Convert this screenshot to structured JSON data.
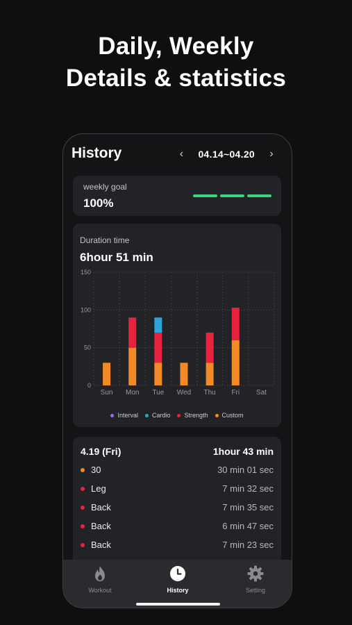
{
  "headline": {
    "line1": "Daily, Weekly",
    "line2": "Details & statistics"
  },
  "header": {
    "title": "History",
    "prev_icon": "chevron-left-icon",
    "next_icon": "chevron-right-icon",
    "prev": "‹",
    "next": "›",
    "date_range": "04.14~04.20"
  },
  "goal": {
    "label": "weekly goal",
    "value": "100%",
    "segments": 3,
    "color": "#3ed37f"
  },
  "duration": {
    "label": "Duration time",
    "value": "6hour 51 min"
  },
  "chart_data": {
    "type": "bar",
    "stacked": true,
    "categories": [
      "Sun",
      "Mon",
      "Tue",
      "Wed",
      "Thu",
      "Fri",
      "Sat"
    ],
    "yticks": [
      0,
      50,
      100,
      150
    ],
    "ylim": [
      0,
      150
    ],
    "grid": true,
    "legend_position": "bottom",
    "series": [
      {
        "name": "Interval",
        "color": "#9b6cf0",
        "values": [
          0,
          0,
          0,
          0,
          0,
          0,
          0
        ]
      },
      {
        "name": "Cardio",
        "color": "#2aa7d8",
        "values": [
          0,
          0,
          20,
          0,
          0,
          0,
          0
        ]
      },
      {
        "name": "Strength",
        "color": "#e8213f",
        "values": [
          0,
          40,
          40,
          0,
          40,
          43,
          0
        ]
      },
      {
        "name": "Custom",
        "color": "#f28b27",
        "values": [
          30,
          50,
          30,
          30,
          30,
          60,
          0
        ]
      }
    ]
  },
  "detail": {
    "date": "4.19 (Fri)",
    "total": "1hour 43 min",
    "items": [
      {
        "name": "30",
        "value": "30 min 01 sec",
        "color": "#f28b27"
      },
      {
        "name": "Leg",
        "value": "7 min 32 sec",
        "color": "#e8213f"
      },
      {
        "name": "Back",
        "value": "7 min 35 sec",
        "color": "#e8213f"
      },
      {
        "name": "Back",
        "value": "6 min 47 sec",
        "color": "#e8213f"
      },
      {
        "name": "Back",
        "value": "7 min 23 sec",
        "color": "#e8213f"
      }
    ]
  },
  "tabs": [
    {
      "label": "Workout",
      "icon": "flame-icon"
    },
    {
      "label": "History",
      "icon": "clock-icon",
      "active": true
    },
    {
      "label": "Setting",
      "icon": "gear-icon"
    }
  ]
}
